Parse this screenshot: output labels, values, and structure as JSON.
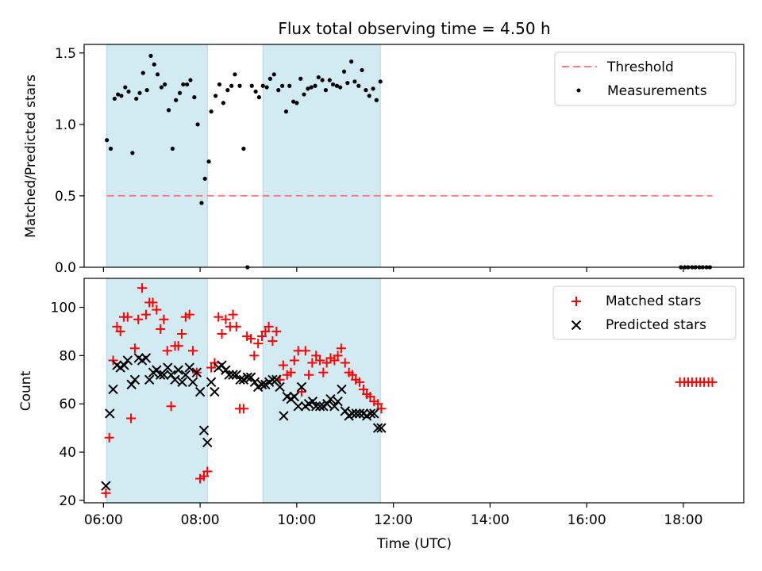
{
  "figure": {
    "title": "Flux total observing time = 4.50 h",
    "xlabel": "Time (UTC)",
    "x_ticks": [
      "06:00",
      "08:00",
      "10:00",
      "12:00",
      "14:00",
      "16:00",
      "18:00"
    ]
  },
  "colors": {
    "span": "#add8e6",
    "threshold": "#ff7f7f",
    "measurements": "#000000",
    "matched": "#ff0000",
    "predicted": "#000000"
  },
  "chart_data": [
    {
      "type": "scatter",
      "ylabel": "Matched/Predicted stars",
      "xlim": [
        5.6,
        19.25
      ],
      "ylim": [
        0,
        1.56
      ],
      "y_ticks": [
        "0.0",
        "0.5",
        "1.0",
        "1.5"
      ],
      "y_tick_values": [
        0,
        0.5,
        1.0,
        1.5
      ],
      "legend": [
        "Threshold",
        "Measurements"
      ],
      "legend_position": "top-right",
      "shaded_spans": [
        [
          6.07,
          8.15
        ],
        [
          9.3,
          11.73
        ]
      ],
      "threshold": {
        "name": "Threshold",
        "y": 0.5,
        "x_start": 6.07,
        "x_end": 18.6
      },
      "series": [
        {
          "name": "Measurements",
          "x": [
            6.07,
            6.15,
            6.23,
            6.3,
            6.37,
            6.45,
            6.52,
            6.6,
            6.68,
            6.75,
            6.82,
            6.9,
            6.98,
            7.05,
            7.12,
            7.2,
            7.27,
            7.35,
            7.43,
            7.5,
            7.58,
            7.65,
            7.73,
            7.8,
            7.88,
            7.95,
            8.03,
            8.1,
            8.18,
            8.23,
            8.32,
            8.4,
            8.48,
            8.57,
            8.65,
            8.72,
            8.82,
            8.9,
            8.98,
            9.07,
            9.15,
            9.22,
            9.3,
            9.38,
            9.45,
            9.53,
            9.62,
            9.7,
            9.78,
            9.85,
            9.93,
            10.0,
            10.08,
            10.15,
            10.23,
            10.3,
            10.38,
            10.45,
            10.53,
            10.6,
            10.68,
            10.75,
            10.83,
            10.9,
            10.98,
            11.05,
            11.13,
            11.2,
            11.28,
            11.35,
            11.43,
            11.5,
            11.58,
            11.65,
            11.73,
            17.95,
            18.03,
            18.1,
            18.18,
            18.25,
            18.33,
            18.4,
            18.48,
            18.55
          ],
          "y": [
            0.89,
            0.83,
            1.18,
            1.21,
            1.2,
            1.26,
            1.23,
            0.8,
            1.18,
            1.22,
            1.36,
            1.24,
            1.48,
            1.42,
            1.35,
            1.26,
            1.28,
            1.1,
            0.83,
            1.17,
            1.22,
            1.28,
            1.28,
            1.31,
            1.19,
            1.0,
            0.45,
            0.62,
            0.74,
            1.09,
            1.2,
            1.28,
            1.15,
            1.24,
            1.27,
            1.35,
            1.27,
            0.83,
            0.0,
            1.27,
            1.23,
            1.19,
            1.27,
            1.26,
            1.32,
            1.35,
            1.24,
            1.27,
            1.09,
            1.27,
            1.16,
            1.15,
            1.32,
            1.21,
            1.25,
            1.26,
            1.27,
            1.33,
            1.31,
            1.24,
            1.31,
            1.28,
            1.27,
            1.26,
            1.37,
            1.29,
            1.44,
            1.3,
            1.27,
            1.38,
            1.24,
            1.2,
            1.25,
            1.17,
            1.3,
            0.0,
            0.0,
            0.0,
            0.0,
            0.0,
            0.0,
            0.0,
            0.0,
            0.0
          ]
        }
      ]
    },
    {
      "type": "scatter",
      "ylabel": "Count",
      "xlim": [
        5.6,
        19.25
      ],
      "ylim": [
        19,
        112
      ],
      "y_ticks": [
        "20",
        "40",
        "60",
        "80",
        "100"
      ],
      "y_tick_values": [
        20,
        40,
        60,
        80,
        100
      ],
      "legend": [
        "Matched stars",
        "Predicted stars"
      ],
      "legend_position": "top-right",
      "shaded_spans": [
        [
          6.07,
          8.15
        ],
        [
          9.3,
          11.73
        ]
      ],
      "series": [
        {
          "name": "Matched stars",
          "x": [
            6.05,
            6.12,
            6.2,
            6.28,
            6.35,
            6.42,
            6.5,
            6.57,
            6.65,
            6.72,
            6.8,
            6.88,
            6.95,
            7.02,
            7.1,
            7.18,
            7.25,
            7.32,
            7.4,
            7.48,
            7.55,
            7.62,
            7.7,
            7.78,
            7.85,
            7.93,
            8.0,
            8.08,
            8.15,
            8.23,
            8.3,
            8.38,
            8.45,
            8.53,
            8.62,
            8.68,
            8.75,
            8.82,
            8.9,
            8.97,
            9.05,
            9.12,
            9.2,
            9.28,
            9.35,
            9.42,
            9.5,
            9.58,
            9.65,
            9.72,
            9.8,
            9.88,
            9.95,
            10.03,
            10.1,
            10.18,
            10.25,
            10.32,
            10.4,
            10.48,
            10.55,
            10.62,
            10.7,
            10.78,
            10.85,
            10.92,
            11.0,
            11.08,
            11.15,
            11.22,
            11.3,
            11.38,
            11.45,
            11.52,
            11.6,
            11.68,
            11.75,
            17.93,
            18.02,
            18.1,
            18.18,
            18.27,
            18.35,
            18.43,
            18.52,
            18.6
          ],
          "y": [
            23,
            46,
            78,
            92,
            90,
            96,
            96,
            54,
            83,
            95,
            108,
            97,
            102,
            102,
            99,
            91,
            95,
            82,
            59,
            84,
            84,
            89,
            96,
            97,
            82,
            73,
            29,
            30,
            32,
            75,
            77,
            96,
            89,
            95,
            92,
            97,
            92,
            58,
            58,
            88,
            87,
            80,
            85,
            88,
            90,
            92,
            86,
            90,
            70,
            76,
            72,
            73,
            78,
            82,
            65,
            82,
            72,
            77,
            80,
            78,
            73,
            77,
            79,
            78,
            80,
            83,
            77,
            73,
            72,
            70,
            69,
            66,
            64,
            63,
            61,
            60,
            58,
            69,
            69,
            69,
            69,
            69,
            69,
            69,
            69,
            69
          ]
        },
        {
          "name": "Predicted stars",
          "x": [
            6.05,
            6.13,
            6.2,
            6.28,
            6.35,
            6.43,
            6.5,
            6.58,
            6.65,
            6.73,
            6.8,
            6.88,
            6.95,
            7.03,
            7.1,
            7.18,
            7.25,
            7.33,
            7.4,
            7.48,
            7.55,
            7.63,
            7.7,
            7.78,
            7.85,
            7.93,
            8.0,
            8.08,
            8.15,
            8.23,
            8.3,
            8.38,
            8.45,
            8.53,
            8.6,
            8.68,
            8.75,
            8.83,
            8.9,
            8.98,
            9.05,
            9.13,
            9.2,
            9.28,
            9.35,
            9.43,
            9.5,
            9.58,
            9.65,
            9.73,
            9.8,
            9.88,
            9.95,
            10.03,
            10.1,
            10.18,
            10.25,
            10.33,
            10.4,
            10.48,
            10.55,
            10.63,
            10.7,
            10.78,
            10.85,
            10.93,
            11.0,
            11.08,
            11.15,
            11.23,
            11.3,
            11.38,
            11.45,
            11.53,
            11.6,
            11.68,
            11.75
          ],
          "y": [
            26,
            56,
            66,
            76,
            75,
            76,
            78,
            68,
            70,
            79,
            78,
            79,
            70,
            73,
            74,
            72,
            72,
            75,
            72,
            70,
            74,
            69,
            72,
            75,
            69,
            73,
            65,
            49,
            44,
            69,
            65,
            75,
            76,
            74,
            72,
            72,
            72,
            70,
            70,
            71,
            71,
            69,
            67,
            68,
            68,
            69,
            70,
            70,
            67,
            55,
            63,
            62,
            63,
            59,
            67,
            59,
            60,
            61,
            59,
            59,
            59,
            60,
            62,
            59,
            61,
            66,
            57,
            55,
            56,
            56,
            56,
            56,
            55,
            56,
            56,
            50,
            50
          ]
        }
      ]
    }
  ]
}
